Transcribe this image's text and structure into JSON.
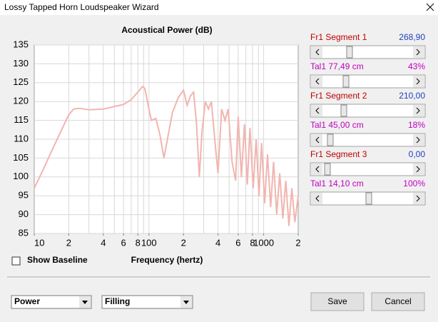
{
  "window": {
    "title": "Lossy Tapped Horn Loudspeaker Wizard"
  },
  "chart_data": {
    "type": "line",
    "title": "Acoustical Power (dB)",
    "xlabel": "Frequency (hertz)",
    "xscale": "log",
    "grid": true,
    "color": "#f2b5b0",
    "x": [
      10,
      12,
      14,
      17,
      20,
      22,
      25,
      30,
      40,
      50,
      60,
      70,
      80,
      88,
      92,
      100,
      105,
      115,
      125,
      135,
      145,
      160,
      180,
      200,
      215,
      230,
      245,
      260,
      275,
      290,
      310,
      330,
      350,
      380,
      400,
      430,
      460,
      490,
      530,
      570,
      600,
      640,
      680,
      720,
      760,
      810,
      860,
      910,
      960,
      1020,
      1080,
      1150,
      1220,
      1300,
      1380,
      1470,
      1560,
      1660,
      1760,
      1870,
      2000
    ],
    "values": [
      97,
      102,
      106.5,
      112,
      116.5,
      118,
      118.2,
      117.8,
      118,
      118.7,
      119.2,
      120.5,
      122.5,
      124,
      123.5,
      118,
      115,
      115.5,
      111,
      105,
      110,
      117,
      121,
      123,
      119,
      121.5,
      122.5,
      114,
      100,
      112,
      120,
      118,
      120,
      108,
      101,
      118,
      115,
      118,
      104,
      99,
      116,
      100,
      114,
      98,
      113,
      97,
      110,
      95,
      109,
      93,
      106,
      92,
      104,
      90,
      101,
      89,
      99,
      87,
      97,
      88,
      95
    ],
    "xlim": [
      10,
      2000
    ],
    "xticks": [
      {
        "value": 10,
        "label": "10"
      },
      {
        "value": 20,
        "label": "2"
      },
      {
        "value": 40,
        "label": "4"
      },
      {
        "value": 60,
        "label": "6"
      },
      {
        "value": 80,
        "label": "8"
      },
      {
        "value": 100,
        "label": "100"
      },
      {
        "value": 200,
        "label": "2"
      },
      {
        "value": 400,
        "label": "4"
      },
      {
        "value": 600,
        "label": "6"
      },
      {
        "value": 800,
        "label": "8"
      },
      {
        "value": 1000,
        "label": "1000"
      },
      {
        "value": 2000,
        "label": "2"
      }
    ],
    "xgrid": [
      20,
      30,
      40,
      50,
      60,
      70,
      80,
      90,
      100,
      200,
      300,
      400,
      500,
      600,
      700,
      800,
      900,
      1000
    ],
    "ylim": [
      85,
      135
    ],
    "yticks": [
      85,
      90,
      95,
      100,
      105,
      110,
      115,
      120,
      125,
      130,
      135
    ]
  },
  "controls": {
    "sliders": [
      {
        "label": "Fr1  Segment 1",
        "value": "268,90"
      },
      {
        "label": "Tal1  77,49 cm",
        "value": "43%"
      },
      {
        "label": "Fr1  Segment 2",
        "value": "210,00"
      },
      {
        "label": "Tal1  45,00 cm",
        "value": "18%"
      },
      {
        "label": "Fr1  Segment 3",
        "value": "0,00"
      },
      {
        "label": "Tal1  14,10 cm",
        "value": "100%"
      }
    ],
    "checkbox": "Show Baseline",
    "combo1": "Power",
    "combo2": "Filling",
    "save": "Save",
    "cancel": "Cancel"
  }
}
